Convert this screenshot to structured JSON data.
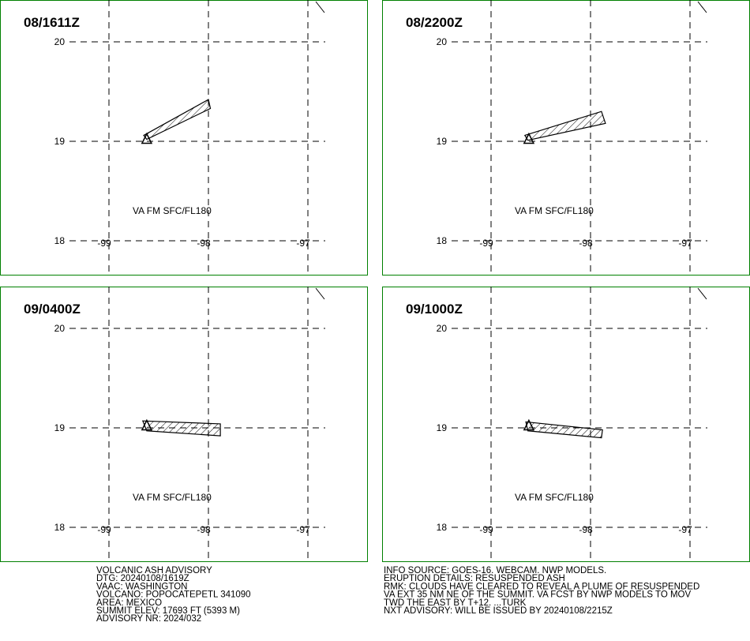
{
  "panels": [
    {
      "label": "08/1611Z",
      "text": "VA FM SFC/FL180",
      "ash_polygon": [
        [
          -98.65,
          19.06
        ],
        [
          -98.0,
          19.42
        ],
        [
          -97.98,
          19.33
        ],
        [
          -98.62,
          19.02
        ]
      ]
    },
    {
      "label": "08/2200Z",
      "text": "VA FM SFC/FL180",
      "ash_polygon": [
        [
          -98.66,
          19.06
        ],
        [
          -97.89,
          19.3
        ],
        [
          -97.85,
          19.18
        ],
        [
          -98.63,
          19.01
        ]
      ]
    },
    {
      "label": "09/0400Z",
      "text": "VA FM SFC/FL180",
      "ash_polygon": [
        [
          -98.66,
          19.07
        ],
        [
          -97.88,
          19.04
        ],
        [
          -97.88,
          18.92
        ],
        [
          -98.62,
          18.97
        ]
      ]
    },
    {
      "label": "09/1000Z",
      "text": "VA FM SFC/FL180",
      "ash_polygon": [
        [
          -98.65,
          19.06
        ],
        [
          -97.88,
          18.98
        ],
        [
          -97.89,
          18.9
        ],
        [
          -98.63,
          18.97
        ]
      ]
    }
  ],
  "volcano": [
    -98.62,
    19.02
  ],
  "lat_ticks": [
    20,
    19,
    18
  ],
  "lon_ticks": [
    -99,
    -98,
    -97
  ],
  "advisory_left": [
    "VOLCANIC ASH ADVISORY",
    "DTG: 20240108/1619Z",
    "VAAC: WASHINGTON",
    "VOLCANO: POPOCATEPETL 341090",
    "AREA: MEXICO",
    "SUMMIT ELEV: 17693 FT (5393 M)",
    "ADVISORY NR: 2024/032"
  ],
  "advisory_right": [
    "INFO SOURCE: GOES-16. WEBCAM. NWP MODELS.",
    "ERUPTION DETAILS: RESUSPENDED ASH",
    "RMK: CLOUDS HAVE CLEARED TO REVEAL A PLUME OF RESUSPENDED",
    "VA EXT 35 NM NE OF THE SUMMIT. VA FCST BY NWP MODELS TO MOV",
    "TWD THE EAST BY T+12. ...TURK",
    "NXT ADVISORY: WILL BE ISSUED BY 20240108/2215Z"
  ]
}
